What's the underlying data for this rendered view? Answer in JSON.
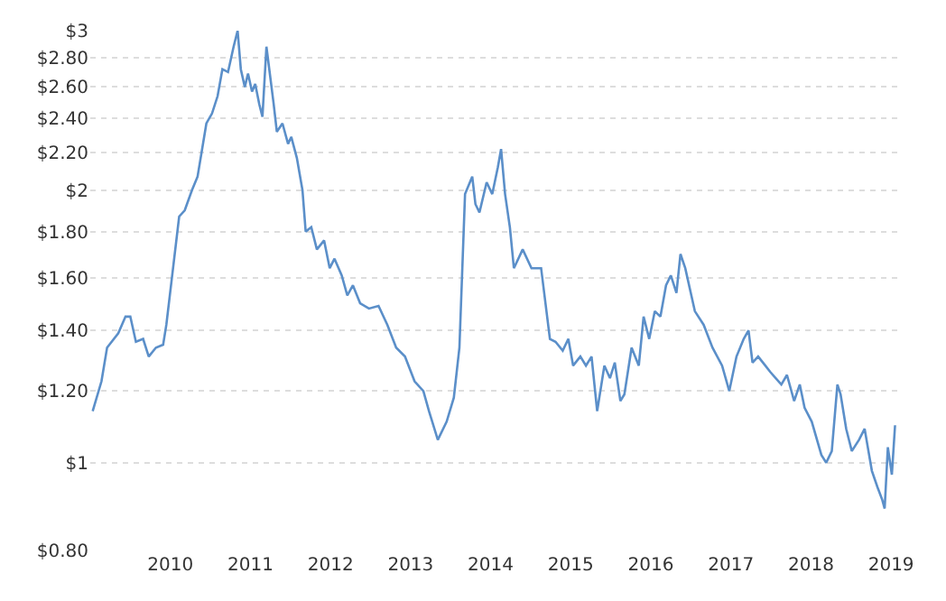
{
  "chart_data": {
    "type": "line",
    "log": true,
    "grid": "y",
    "marker": "none",
    "line_style": "solid",
    "xlim": [
      2009.0,
      2019.1
    ],
    "ylim": [
      0.8,
      3.0
    ],
    "xticks": [
      {
        "value": 2010,
        "label": "2010"
      },
      {
        "value": 2011,
        "label": "2011"
      },
      {
        "value": 2012,
        "label": "2012"
      },
      {
        "value": 2013,
        "label": "2013"
      },
      {
        "value": 2014,
        "label": "2014"
      },
      {
        "value": 2015,
        "label": "2015"
      },
      {
        "value": 2016,
        "label": "2016"
      },
      {
        "value": 2017,
        "label": "2017"
      },
      {
        "value": 2018,
        "label": "2018"
      },
      {
        "value": 2019,
        "label": "2019"
      }
    ],
    "yticks": [
      {
        "value": 0.8,
        "label": "$0.80"
      },
      {
        "value": 1,
        "label": "$1"
      },
      {
        "value": 1.2,
        "label": "$1.20"
      },
      {
        "value": 1.4,
        "label": "$1.40"
      },
      {
        "value": 1.6,
        "label": "$1.60"
      },
      {
        "value": 1.8,
        "label": "$1.80"
      },
      {
        "value": 2,
        "label": "$2"
      },
      {
        "value": 2.2,
        "label": "$2.20"
      },
      {
        "value": 2.4,
        "label": "$2.40"
      },
      {
        "value": 2.6,
        "label": "$2.60"
      },
      {
        "value": 2.8,
        "label": "$2.80"
      },
      {
        "value": 3,
        "label": "$3"
      }
    ],
    "series": [
      {
        "color": "#5b8fc9",
        "x": [
          2009.03,
          2009.14,
          2009.21,
          2009.35,
          2009.44,
          2009.5,
          2009.57,
          2009.66,
          2009.73,
          2009.82,
          2009.91,
          2009.95,
          2010.11,
          2010.18,
          2010.27,
          2010.34,
          2010.45,
          2010.52,
          2010.59,
          2010.65,
          2010.72,
          2010.79,
          2010.84,
          2010.88,
          2010.93,
          2010.97,
          2011.02,
          2011.06,
          2011.11,
          2011.15,
          2011.2,
          2011.29,
          2011.33,
          2011.4,
          2011.47,
          2011.51,
          2011.58,
          2011.65,
          2011.69,
          2011.76,
          2011.83,
          2011.92,
          2011.99,
          2012.05,
          2012.14,
          2012.21,
          2012.28,
          2012.37,
          2012.48,
          2012.6,
          2012.71,
          2012.82,
          2012.93,
          2013.05,
          2013.16,
          2013.23,
          2013.34,
          2013.45,
          2013.54,
          2013.61,
          2013.68,
          2013.77,
          2013.81,
          2013.86,
          2013.95,
          2014.02,
          2014.09,
          2014.13,
          2014.18,
          2014.24,
          2014.29,
          2014.4,
          2014.51,
          2014.63,
          2014.74,
          2014.81,
          2014.9,
          2014.97,
          2015.03,
          2015.12,
          2015.19,
          2015.26,
          2015.33,
          2015.42,
          2015.49,
          2015.55,
          2015.62,
          2015.67,
          2015.76,
          2015.85,
          2015.91,
          2015.98,
          2016.05,
          2016.12,
          2016.19,
          2016.25,
          2016.32,
          2016.37,
          2016.43,
          2016.55,
          2016.66,
          2016.77,
          2016.89,
          2016.98,
          2017.07,
          2017.16,
          2017.22,
          2017.27,
          2017.34,
          2017.43,
          2017.49,
          2017.56,
          2017.63,
          2017.7,
          2017.79,
          2017.86,
          2017.92,
          2018.01,
          2018.13,
          2018.19,
          2018.26,
          2018.33,
          2018.37,
          2018.44,
          2018.51,
          2018.6,
          2018.67,
          2018.76,
          2018.83,
          2018.89,
          2018.92,
          2018.96,
          2019.01,
          2019.05
        ],
        "values": [
          1.14,
          1.23,
          1.34,
          1.39,
          1.45,
          1.45,
          1.36,
          1.37,
          1.31,
          1.34,
          1.35,
          1.42,
          1.87,
          1.9,
          2.0,
          2.07,
          2.37,
          2.43,
          2.54,
          2.72,
          2.7,
          2.88,
          3.0,
          2.72,
          2.6,
          2.69,
          2.57,
          2.62,
          2.49,
          2.41,
          2.88,
          2.49,
          2.32,
          2.37,
          2.25,
          2.29,
          2.17,
          2.0,
          1.8,
          1.82,
          1.72,
          1.76,
          1.64,
          1.68,
          1.61,
          1.53,
          1.57,
          1.5,
          1.48,
          1.49,
          1.42,
          1.34,
          1.31,
          1.23,
          1.2,
          1.14,
          1.06,
          1.11,
          1.18,
          1.34,
          1.98,
          2.07,
          1.93,
          1.89,
          2.04,
          1.98,
          2.12,
          2.22,
          1.98,
          1.82,
          1.64,
          1.72,
          1.64,
          1.64,
          1.37,
          1.36,
          1.33,
          1.37,
          1.28,
          1.31,
          1.28,
          1.31,
          1.14,
          1.28,
          1.24,
          1.29,
          1.17,
          1.19,
          1.34,
          1.28,
          1.45,
          1.37,
          1.47,
          1.45,
          1.57,
          1.61,
          1.54,
          1.7,
          1.64,
          1.47,
          1.42,
          1.34,
          1.28,
          1.2,
          1.31,
          1.37,
          1.4,
          1.29,
          1.31,
          1.28,
          1.26,
          1.24,
          1.22,
          1.25,
          1.17,
          1.22,
          1.15,
          1.11,
          1.02,
          1.0,
          1.03,
          1.22,
          1.19,
          1.09,
          1.03,
          1.06,
          1.09,
          0.98,
          0.94,
          0.91,
          0.89,
          1.04,
          0.97,
          1.1
        ]
      }
    ]
  }
}
